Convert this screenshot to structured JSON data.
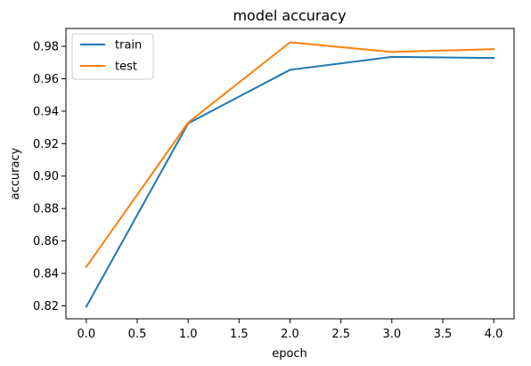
{
  "chart_data": {
    "type": "line",
    "title": "model accuracy",
    "xlabel": "epoch",
    "ylabel": "accuracy",
    "xlim": [
      -0.2,
      4.2
    ],
    "ylim": [
      0.812,
      0.991
    ],
    "x_ticks": [
      0.0,
      0.5,
      1.0,
      1.5,
      2.0,
      2.5,
      3.0,
      3.5,
      4.0
    ],
    "x_tick_labels": [
      "0.0",
      "0.5",
      "1.0",
      "1.5",
      "2.0",
      "2.5",
      "3.0",
      "3.5",
      "4.0"
    ],
    "y_ticks": [
      0.82,
      0.84,
      0.86,
      0.88,
      0.9,
      0.92,
      0.94,
      0.96,
      0.98
    ],
    "y_tick_labels": [
      "0.82",
      "0.84",
      "0.86",
      "0.88",
      "0.90",
      "0.92",
      "0.94",
      "0.96",
      "0.98"
    ],
    "grid": false,
    "legend_position": "top-left",
    "x": [
      0,
      1,
      2,
      3,
      4
    ],
    "series": [
      {
        "name": "train",
        "color": "#1f77b4",
        "values": [
          0.8195,
          0.9325,
          0.9655,
          0.9735,
          0.9728
        ]
      },
      {
        "name": "test",
        "color": "#ff7f0e",
        "values": [
          0.844,
          0.933,
          0.9825,
          0.9765,
          0.9783
        ]
      }
    ]
  }
}
